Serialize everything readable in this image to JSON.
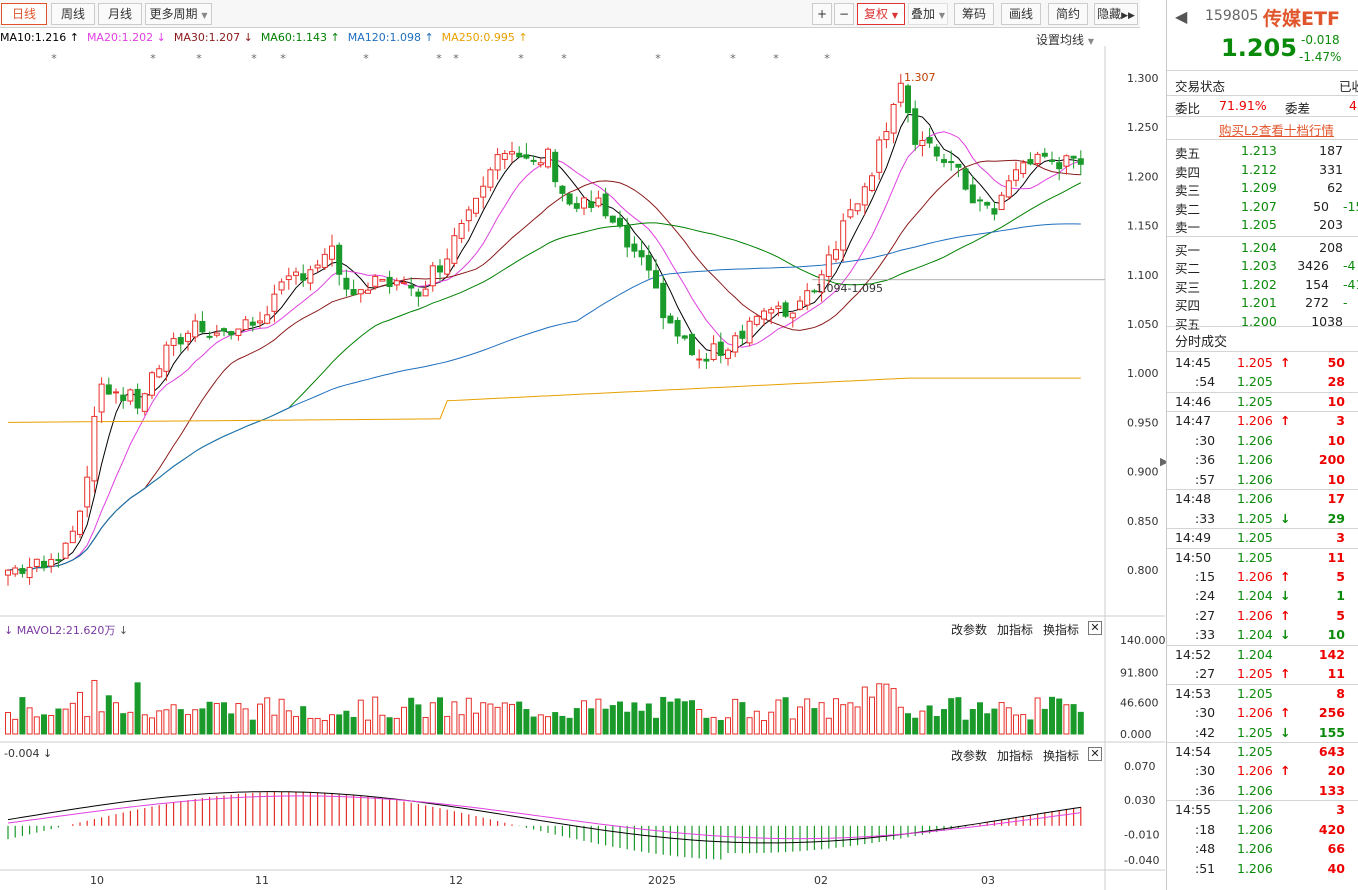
{
  "toolbar": {
    "periods": [
      "日线",
      "周线",
      "月线"
    ],
    "more_periods": "更多周期",
    "zoom_in": "+",
    "zoom_out": "−",
    "adjust": "复权",
    "overlay": "叠加",
    "chips": "筹码",
    "draw_line": "画线",
    "simplify": "简约",
    "hide": "隐藏"
  },
  "ma_legend": [
    {
      "text": "MA10:1.216",
      "arrow": "↑",
      "color": "#000000"
    },
    {
      "text": "MA20:1.202",
      "arrow": "↓",
      "color": "#e040e0"
    },
    {
      "text": "MA30:1.207",
      "arrow": "↓",
      "color": "#8b1a1a"
    },
    {
      "text": "MA60:1.143",
      "arrow": "↑",
      "color": "#008000"
    },
    {
      "text": "MA120:1.098",
      "arrow": "↑",
      "color": "#1f6fbf"
    },
    {
      "text": "MA250:0.995",
      "arrow": "↑",
      "color": "#e8a000"
    }
  ],
  "ma_settings": "设置均线",
  "price_axis": [
    "1.300",
    "1.250",
    "1.200",
    "1.150",
    "1.100",
    "1.050",
    "1.000",
    "0.950",
    "0.900",
    "0.850",
    "0.800"
  ],
  "annotations": {
    "high": "1.307",
    "range": "1.094-1.095"
  },
  "volume_panel": {
    "label": "MAVOL2:21.620万",
    "axis": [
      "140.000",
      "91.800",
      "46.600",
      "0.000"
    ],
    "buttons": [
      "改参数",
      "加指标",
      "换指标"
    ]
  },
  "macd_panel": {
    "label": "-0.004",
    "axis": [
      "0.070",
      "0.030",
      "-0.010",
      "-0.040"
    ],
    "buttons": [
      "改参数",
      "加指标",
      "换指标"
    ]
  },
  "time_axis": [
    "10",
    "11",
    "12",
    "2025",
    "02",
    "03"
  ],
  "quote": {
    "code": "159805",
    "name": "传媒ETF",
    "price": "1.205",
    "change": "-0.018",
    "change_pct": "-1.47%",
    "status_label": "交易状态",
    "status_value": "已收",
    "ratio_label": "委比",
    "ratio_value": "71.91%",
    "diff_label": "委差",
    "diff_value": "4",
    "l2_link": "购买L2查看十档行情"
  },
  "asks": [
    {
      "label": "卖五",
      "price": "1.213",
      "vol": "187",
      "extra": ""
    },
    {
      "label": "卖四",
      "price": "1.212",
      "vol": "331",
      "extra": ""
    },
    {
      "label": "卖三",
      "price": "1.209",
      "vol": "62",
      "extra": ""
    },
    {
      "label": "卖二",
      "price": "1.207",
      "vol": "50",
      "extra": "-15"
    },
    {
      "label": "卖一",
      "price": "1.205",
      "vol": "203",
      "extra": ""
    }
  ],
  "bids": [
    {
      "label": "买一",
      "price": "1.204",
      "vol": "208",
      "extra": ""
    },
    {
      "label": "买二",
      "price": "1.203",
      "vol": "3426",
      "extra": "-4"
    },
    {
      "label": "买三",
      "price": "1.202",
      "vol": "154",
      "extra": "-41"
    },
    {
      "label": "买四",
      "price": "1.201",
      "vol": "272",
      "extra": "-"
    },
    {
      "label": "买五",
      "price": "1.200",
      "vol": "1038",
      "extra": ""
    }
  ],
  "ticks_title": "分时成交",
  "ticks": [
    {
      "time": "14:45",
      "price": "1.205",
      "dir": "up",
      "vol": "50",
      "major": true
    },
    {
      "time": ":54",
      "price": "1.205",
      "dir": "",
      "vol": "28",
      "major": false
    },
    {
      "time": "14:46",
      "price": "1.205",
      "dir": "",
      "vol": "10",
      "major": true
    },
    {
      "time": "14:47",
      "price": "1.206",
      "dir": "up",
      "vol": "3",
      "major": true
    },
    {
      "time": ":30",
      "price": "1.206",
      "dir": "",
      "vol": "10",
      "major": false
    },
    {
      "time": ":36",
      "price": "1.206",
      "dir": "",
      "vol": "200",
      "major": false
    },
    {
      "time": ":57",
      "price": "1.206",
      "dir": "",
      "vol": "10",
      "major": false
    },
    {
      "time": "14:48",
      "price": "1.206",
      "dir": "",
      "vol": "17",
      "major": true
    },
    {
      "time": ":33",
      "price": "1.205",
      "dir": "down",
      "vol": "29",
      "major": false
    },
    {
      "time": "14:49",
      "price": "1.205",
      "dir": "",
      "vol": "3",
      "major": true
    },
    {
      "time": "14:50",
      "price": "1.205",
      "dir": "",
      "vol": "11",
      "major": true
    },
    {
      "time": ":15",
      "price": "1.206",
      "dir": "up",
      "vol": "5",
      "major": false
    },
    {
      "time": ":24",
      "price": "1.204",
      "dir": "down",
      "vol": "1",
      "major": false
    },
    {
      "time": ":27",
      "price": "1.206",
      "dir": "up",
      "vol": "5",
      "major": false
    },
    {
      "time": ":33",
      "price": "1.204",
      "dir": "down",
      "vol": "10",
      "major": false
    },
    {
      "time": "14:52",
      "price": "1.204",
      "dir": "",
      "vol": "142",
      "major": true
    },
    {
      "time": ":27",
      "price": "1.205",
      "dir": "up",
      "vol": "11",
      "major": false
    },
    {
      "time": "14:53",
      "price": "1.205",
      "dir": "",
      "vol": "8",
      "major": true
    },
    {
      "time": ":30",
      "price": "1.206",
      "dir": "up",
      "vol": "256",
      "major": false
    },
    {
      "time": ":42",
      "price": "1.205",
      "dir": "down",
      "vol": "155",
      "major": false
    },
    {
      "time": "14:54",
      "price": "1.205",
      "dir": "",
      "vol": "643",
      "major": true
    },
    {
      "time": ":30",
      "price": "1.206",
      "dir": "up",
      "vol": "20",
      "major": false
    },
    {
      "time": ":36",
      "price": "1.206",
      "dir": "",
      "vol": "133",
      "major": false
    },
    {
      "time": "14:55",
      "price": "1.206",
      "dir": "",
      "vol": "3",
      "major": true
    },
    {
      "time": ":18",
      "price": "1.206",
      "dir": "",
      "vol": "420",
      "major": false
    },
    {
      "time": ":48",
      "price": "1.206",
      "dir": "",
      "vol": "66",
      "major": false
    },
    {
      "time": ":51",
      "price": "1.206",
      "dir": "",
      "vol": "40",
      "major": false
    }
  ],
  "colors": {
    "up": "#e8302a",
    "down": "#1a9a2a",
    "accent": "#e0552b"
  }
}
